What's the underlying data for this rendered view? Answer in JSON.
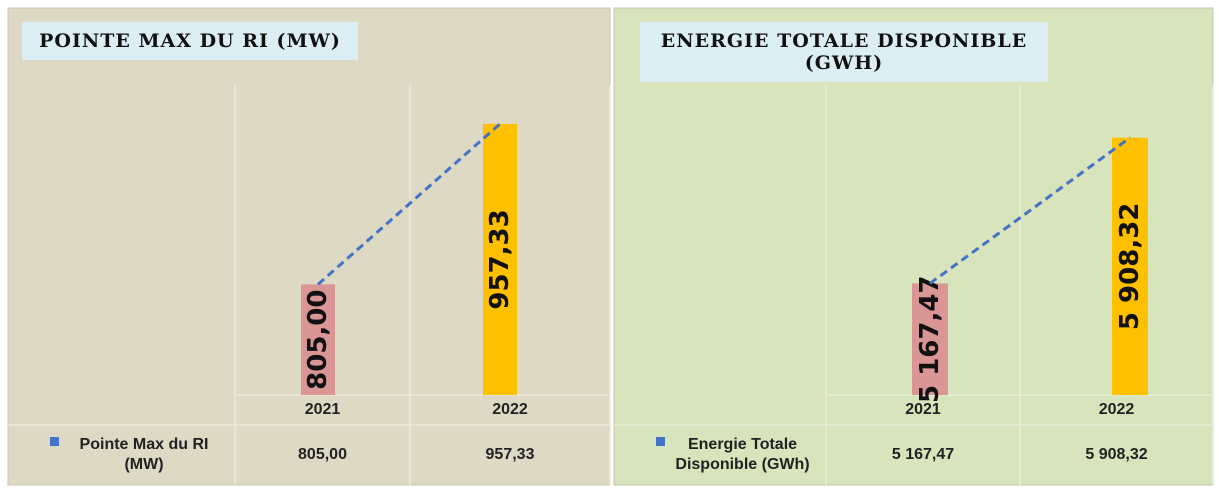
{
  "chart_data": [
    {
      "type": "bar",
      "title": "POINTE MAX DU RI (MW)",
      "categories": [
        "2021",
        "2022"
      ],
      "series": [
        {
          "name": "Pointe Max du RI (MW)",
          "color": "#4472c4",
          "values": [
            805,
            957.33
          ],
          "value_labels": [
            "805,00",
            "957,33"
          ]
        }
      ],
      "bar_colors": [
        "#d99694",
        "#ffc000"
      ],
      "ylim": [
        700,
        980
      ],
      "trendline": true,
      "data_table": true
    },
    {
      "type": "bar",
      "title": "ENERGIE TOTALE DISPONIBLE (GWH)",
      "categories": [
        "2021",
        "2022"
      ],
      "series": [
        {
          "name": "Energie Totale Disponible (GWh)",
          "color": "#4472c4",
          "values": [
            5167.47,
            5908.32
          ],
          "value_labels": [
            "5 167,47",
            "5 908,32"
          ]
        }
      ],
      "bar_colors": [
        "#d99694",
        "#ffc000"
      ],
      "ylim": [
        4600,
        6100
      ],
      "trendline": true,
      "data_table": true
    }
  ]
}
